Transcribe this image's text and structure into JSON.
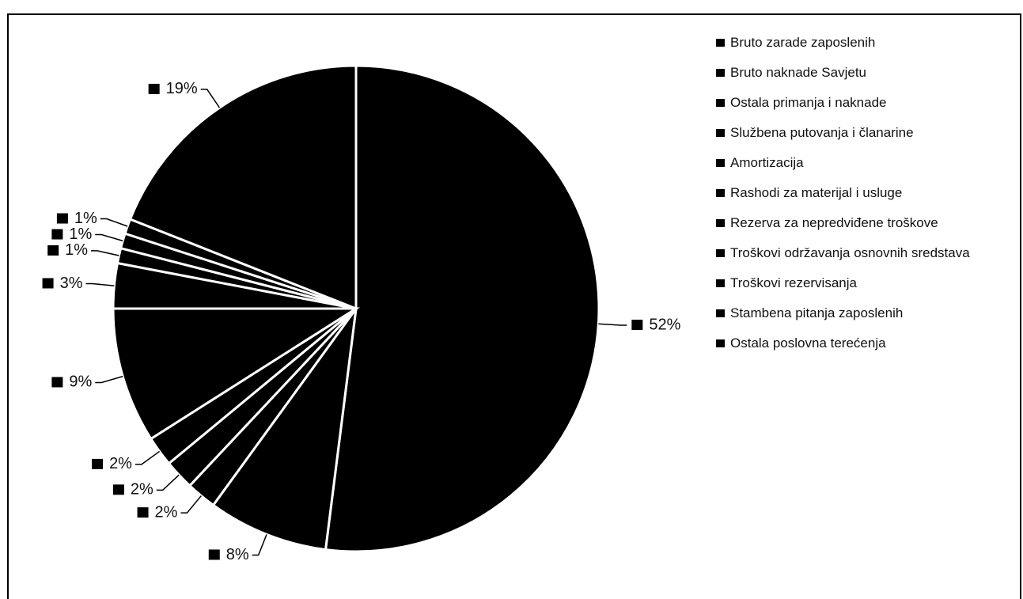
{
  "chart_data": {
    "type": "pie",
    "categories": [
      "Bruto zarade zaposlenih",
      "Bruto naknade Savjetu",
      "Ostala primanja i naknade",
      "Službena putovanja i članarine",
      "Amortizacija",
      "Rashodi za materijal i usluge",
      "Rezerva za nepredviđene troškove",
      "Troškovi održavanja osnovnih sredstava",
      "Troškovi rezervisanja",
      "Stambena pitanja zaposlenih",
      "Ostala poslovna terećenja"
    ],
    "values": [
      52,
      8,
      2,
      2,
      2,
      9,
      3,
      1,
      1,
      1,
      19
    ],
    "value_labels": [
      "52%",
      "8%",
      "2%",
      "2%",
      "2%",
      "9%",
      "3%",
      "1%",
      "1%",
      "1%",
      "19%"
    ],
    "color": "#000000",
    "legend": "right"
  }
}
